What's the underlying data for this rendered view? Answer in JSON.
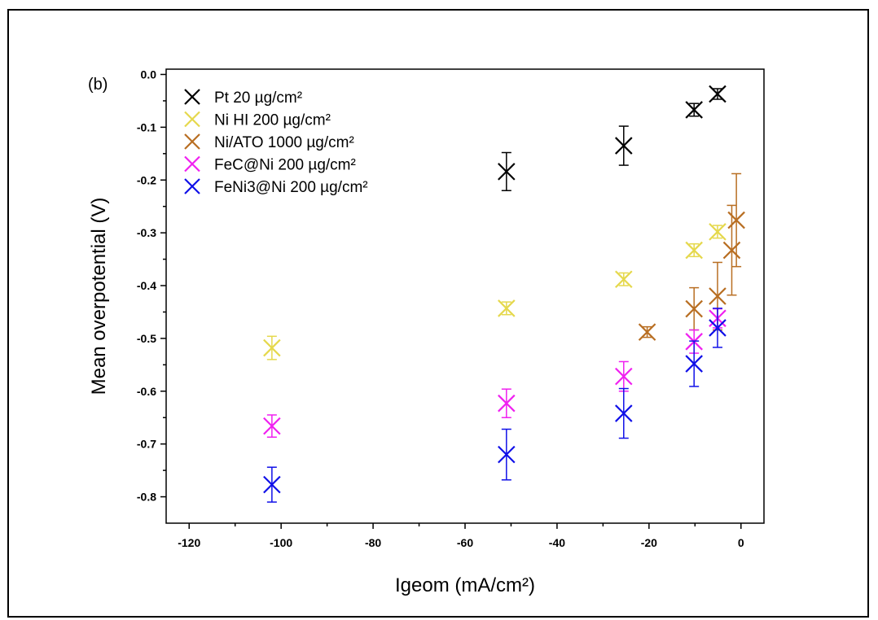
{
  "chart_data": {
    "type": "scatter",
    "panel_label": "(b)",
    "xlabel": "Igeom (mA/cm²)",
    "ylabel": "Mean overpotential (V)",
    "xlim": [
      -125,
      5
    ],
    "ylim": [
      -0.85,
      0.01
    ],
    "xticks": [
      -120,
      -100,
      -80,
      -60,
      -40,
      -20,
      0
    ],
    "xtick_labels": [
      "-120",
      "-100",
      "-80",
      "-60",
      "-40",
      "-20",
      "0"
    ],
    "yticks": [
      0.0,
      -0.1,
      -0.2,
      -0.3,
      -0.4,
      -0.5,
      -0.6,
      -0.7,
      -0.8
    ],
    "ytick_labels": [
      "0.0",
      "-0.1",
      "-0.2",
      "-0.3",
      "-0.4",
      "-0.5",
      "-0.6",
      "-0.7",
      "-0.8"
    ],
    "legend_position": "top-left",
    "grid": false,
    "series": [
      {
        "name": "Pt 20 µg/cm²",
        "color": "#000000",
        "points": [
          {
            "x": -51,
            "y": -0.184,
            "err": 0.036
          },
          {
            "x": -25.5,
            "y": -0.135,
            "err": 0.037
          },
          {
            "x": -10.2,
            "y": -0.067,
            "err": 0.012
          },
          {
            "x": -5.1,
            "y": -0.037,
            "err": 0.01
          }
        ]
      },
      {
        "name": "Ni HI 200 µg/cm²",
        "color": "#E5D84C",
        "points": [
          {
            "x": -102,
            "y": -0.518,
            "err": 0.022
          },
          {
            "x": -51,
            "y": -0.443,
            "err": 0.012
          },
          {
            "x": -25.5,
            "y": -0.388,
            "err": 0.012
          },
          {
            "x": -10.2,
            "y": -0.333,
            "err": 0.012
          },
          {
            "x": -5.1,
            "y": -0.298,
            "err": 0.012
          }
        ]
      },
      {
        "name": "Ni/ATO 1000 µg/cm²",
        "color": "#B86E22",
        "points": [
          {
            "x": -20.4,
            "y": -0.488,
            "err": 0.01
          },
          {
            "x": -10.2,
            "y": -0.444,
            "err": 0.04
          },
          {
            "x": -5.1,
            "y": -0.42,
            "err": 0.064
          },
          {
            "x": -2,
            "y": -0.333,
            "err": 0.085
          },
          {
            "x": -1,
            "y": -0.276,
            "err": 0.088
          }
        ]
      },
      {
        "name": "FeC@Ni 200 µg/cm²",
        "color": "#F020F0",
        "points": [
          {
            "x": -102,
            "y": -0.666,
            "err": 0.021
          },
          {
            "x": -51,
            "y": -0.623,
            "err": 0.027
          },
          {
            "x": -25.5,
            "y": -0.572,
            "err": 0.028
          },
          {
            "x": -10.2,
            "y": -0.506,
            "err": 0.022
          },
          {
            "x": -5.1,
            "y": -0.462,
            "err": 0.018
          }
        ]
      },
      {
        "name": "FeNi3@Ni 200 µg/cm²",
        "color": "#1010E8",
        "points": [
          {
            "x": -102,
            "y": -0.777,
            "err": 0.033
          },
          {
            "x": -51,
            "y": -0.72,
            "err": 0.048
          },
          {
            "x": -25.5,
            "y": -0.642,
            "err": 0.047
          },
          {
            "x": -10.2,
            "y": -0.548,
            "err": 0.043
          },
          {
            "x": -5.1,
            "y": -0.48,
            "err": 0.037
          }
        ]
      }
    ]
  }
}
